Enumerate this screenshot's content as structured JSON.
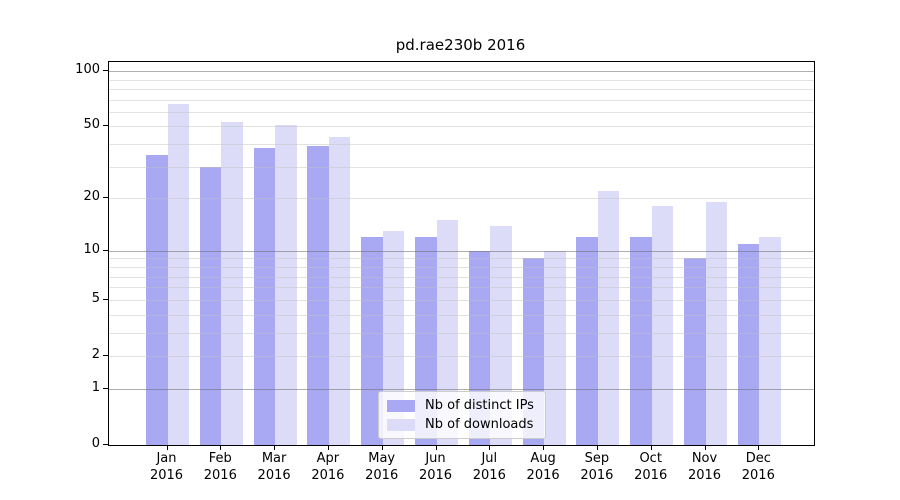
{
  "chart_data": {
    "type": "bar",
    "title": "pd.rae230b 2016",
    "categories": [
      "Jan",
      "Feb",
      "Mar",
      "Apr",
      "May",
      "Jun",
      "Jul",
      "Aug",
      "Sep",
      "Oct",
      "Nov",
      "Dec"
    ],
    "year": "2016",
    "x_tick_labels": [
      "Jan\n2016",
      "Feb\n2016",
      "Mar\n2016",
      "Apr\n2016",
      "May\n2016",
      "Jun\n2016",
      "Jul\n2016",
      "Aug\n2016",
      "Sep\n2016",
      "Oct\n2016",
      "Nov\n2016",
      "Dec\n2016"
    ],
    "series": [
      {
        "name": "Nb of distinct IPs",
        "color": "#a9a9f3",
        "values": [
          35,
          30,
          38,
          39,
          12,
          12,
          10,
          9,
          12,
          12,
          9,
          11
        ]
      },
      {
        "name": "Nb of downloads",
        "color": "#dcdcf8",
        "values": [
          66,
          53,
          51,
          44,
          13,
          15,
          14,
          10,
          22,
          18,
          19,
          12
        ]
      }
    ],
    "yscale": "log1p",
    "yticks": [
      0,
      1,
      2,
      5,
      10,
      20,
      50,
      100
    ],
    "ylim": [
      0,
      112
    ],
    "grid": {
      "major": [
        1,
        10,
        100
      ],
      "minor": [
        2,
        3,
        4,
        5,
        6,
        7,
        8,
        9,
        20,
        30,
        40,
        50,
        60,
        70,
        80,
        90
      ],
      "major_color": "rgba(110,110,110,0.55)",
      "minor_color": "rgba(190,190,190,0.45)"
    },
    "legend_position": "bottom-center",
    "axis_color": "#000000",
    "text_color": "#000000",
    "background_color": "#ffffff"
  }
}
